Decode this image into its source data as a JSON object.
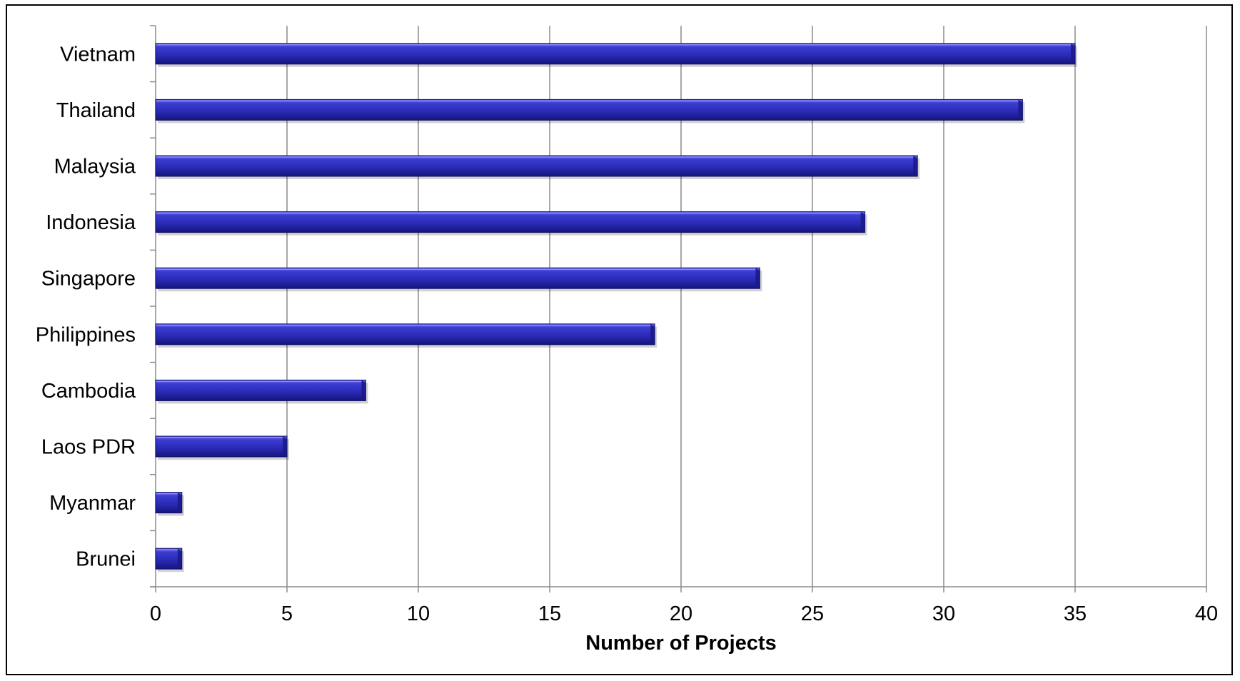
{
  "chart_data": {
    "type": "bar",
    "orientation": "horizontal",
    "categories": [
      "Vietnam",
      "Thailand",
      "Malaysia",
      "Indonesia",
      "Singapore",
      "Philippines",
      "Cambodia",
      "Laos PDR",
      "Myanmar",
      "Brunei"
    ],
    "values": [
      35,
      33,
      29,
      27,
      23,
      19,
      8,
      5,
      1,
      1
    ],
    "title": "",
    "xlabel": "Number of Projects",
    "ylabel": "",
    "xlim": [
      0,
      40
    ],
    "x_ticks": [
      0,
      5,
      10,
      15,
      20,
      25,
      30,
      35,
      40
    ],
    "grid": true,
    "legend": "none",
    "colors": {
      "bar": "#2b2bb8",
      "bar_highlight": "#5a5ae6",
      "bar_shade": "#14147a",
      "grid": "#8c8c8c",
      "axis": "#8c8c8c"
    }
  }
}
